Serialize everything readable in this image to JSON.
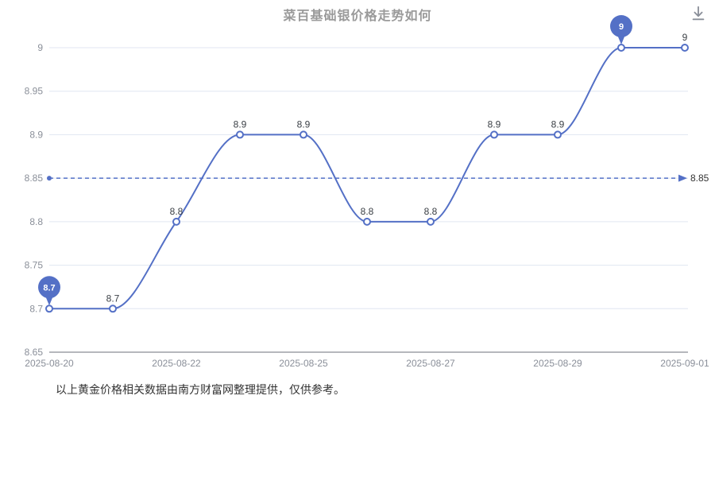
{
  "header": {
    "title": "菜百基础银价格走势如何",
    "download_icon": "download"
  },
  "chart_data": {
    "type": "line",
    "title": "菜百基础银价格走势如何",
    "series_values": [
      8.7,
      8.7,
      8.8,
      8.9,
      8.9,
      8.8,
      8.8,
      8.9,
      8.9,
      9,
      9
    ],
    "point_labels": [
      "8.7",
      "8.7",
      "8.8",
      "8.9",
      "8.9",
      "8.8",
      "8.8",
      "8.9",
      "8.9",
      "9",
      "9"
    ],
    "x_tick_labels": [
      "2025-08-20",
      "2025-08-22",
      "2025-08-25",
      "2025-08-27",
      "2025-08-29",
      "2025-09-01"
    ],
    "x_tick_indices": [
      0,
      2,
      4,
      6,
      8,
      10
    ],
    "y_ticks": [
      8.65,
      8.7,
      8.75,
      8.8,
      8.85,
      8.9,
      8.95,
      9
    ],
    "y_tick_labels": [
      "8.65",
      "8.7",
      "8.75",
      "8.8",
      "8.85",
      "8.9",
      "8.95",
      "9"
    ],
    "ylim": [
      8.65,
      9
    ],
    "grid_on": true,
    "legend": null,
    "smooth": true,
    "mark_line": {
      "value": 8.85,
      "label": "8.85"
    },
    "mark_points": [
      {
        "index": 0,
        "label": "8.7",
        "kind": "min"
      },
      {
        "index": 9,
        "label": "9",
        "kind": "max"
      }
    ],
    "colors": {
      "line": "#5470c6",
      "point_fill": "#ffffff",
      "grid": "#e0e6f1",
      "axis_line": "#6e7079",
      "axis_text": "#8a8f99",
      "point_label": "#3a3f45",
      "mark_line_label": "#333333",
      "mark_point_fill": "#5470c6",
      "mark_point_text": "#ffffff",
      "icon": "#8a8f99"
    }
  },
  "footer": {
    "disclaimer": "以上黄金价格相关数据由南方财富网整理提供，仅供参考。"
  }
}
